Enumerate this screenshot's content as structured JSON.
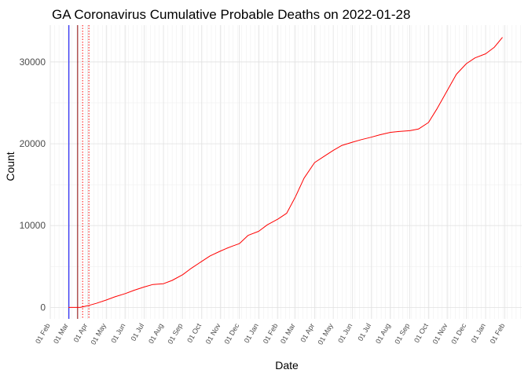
{
  "chart_data": {
    "type": "line",
    "title": "GA Coronavirus Cumulative Probable Deaths on 2022-01-28",
    "xlabel": "Date",
    "ylabel": "Count",
    "xlim": [
      "2020-02-01",
      "2022-02-28"
    ],
    "ylim": [
      -1400,
      34500
    ],
    "y_ticks": [
      0,
      10000,
      20000,
      30000
    ],
    "grid": true,
    "legend": "none",
    "line_color": "#ff0000",
    "series": [
      {
        "x": [
          "2020-03-01",
          "2020-03-20",
          "2020-04-01",
          "2020-04-15",
          "2020-05-01",
          "2020-05-15",
          "2020-06-01",
          "2020-06-15",
          "2020-07-01",
          "2020-07-15",
          "2020-08-01",
          "2020-08-15",
          "2020-09-01",
          "2020-09-15",
          "2020-10-01",
          "2020-10-15",
          "2020-11-01",
          "2020-11-10",
          "2020-11-20",
          "2020-12-01",
          "2020-12-15",
          "2021-01-01",
          "2021-01-15",
          "2021-02-01",
          "2021-02-15",
          "2021-03-01",
          "2021-03-15",
          "2021-04-01",
          "2021-04-15",
          "2021-05-01",
          "2021-05-15",
          "2021-06-01",
          "2021-06-15",
          "2021-07-01",
          "2021-07-15",
          "2021-08-01",
          "2021-08-15",
          "2021-09-01",
          "2021-09-15",
          "2021-10-01",
          "2021-10-15",
          "2021-11-01",
          "2021-11-15",
          "2021-12-01",
          "2021-12-15",
          "2022-01-01",
          "2022-01-15",
          "2022-01-28"
        ],
        "values": [
          0,
          0,
          200,
          500,
          900,
          1300,
          1700,
          2100,
          2500,
          2800,
          2900,
          3300,
          4000,
          4800,
          5600,
          6300,
          6900,
          7200,
          7500,
          7800,
          8800,
          9300,
          10100,
          10800,
          11500,
          13500,
          15800,
          17700,
          18400,
          19200,
          19800,
          20200,
          20500,
          20800,
          21100,
          21400,
          21500,
          21600,
          21800,
          22600,
          24300,
          26600,
          28500,
          29800,
          30500,
          31000,
          31800,
          33000
        ]
      }
    ],
    "reference_lines": [
      {
        "x": "2020-03-02",
        "color": "#0000ff",
        "style": "solid"
      },
      {
        "x": "2020-03-16",
        "color": "#8b0000",
        "style": "solid"
      },
      {
        "x": "2020-03-24",
        "color": "#ff0000",
        "style": "dotted"
      },
      {
        "x": "2020-04-03",
        "color": "#ff0000",
        "style": "dotted"
      }
    ]
  }
}
